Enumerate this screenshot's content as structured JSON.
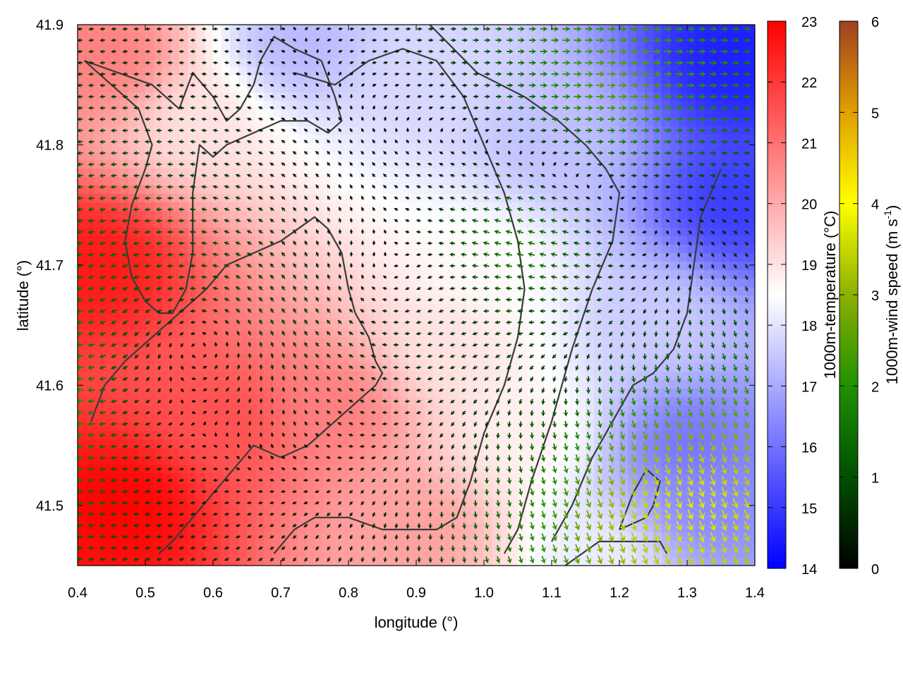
{
  "chart_data": {
    "type": "heatmap",
    "xlabel": "longitude (°)",
    "ylabel": "latitude (°)",
    "xlim": [
      0.4,
      1.4
    ],
    "ylim": [
      41.45,
      41.9
    ],
    "x_ticks": [
      "0.4",
      "0.5",
      "0.6",
      "0.7",
      "0.8",
      "0.9",
      "1.0",
      "1.1",
      "1.2",
      "1.3",
      "1.4"
    ],
    "y_ticks": [
      "41.5",
      "41.6",
      "41.7",
      "41.8",
      "41.9"
    ],
    "grid": false,
    "temperature": {
      "label": "1000m-temperature (°C)",
      "range": [
        14,
        23
      ],
      "ticks": [
        "14",
        "15",
        "16",
        "17",
        "18",
        "19",
        "20",
        "21",
        "22",
        "23"
      ],
      "colors": [
        "#0000ff",
        "#ffffff",
        "#ff0000"
      ],
      "hotspots": [
        {
          "lon": 0.47,
          "lat": 41.5,
          "t": 23.0
        },
        {
          "lon": 0.43,
          "lat": 41.7,
          "t": 22.6
        },
        {
          "lon": 0.45,
          "lat": 41.87,
          "t": 20.8
        },
        {
          "lon": 0.62,
          "lat": 41.57,
          "t": 21.6
        },
        {
          "lon": 0.78,
          "lat": 41.58,
          "t": 20.8
        },
        {
          "lon": 0.9,
          "lat": 41.48,
          "t": 20.2
        },
        {
          "lon": 0.58,
          "lat": 41.82,
          "t": 19.0
        },
        {
          "lon": 0.72,
          "lat": 41.88,
          "t": 17.2
        },
        {
          "lon": 0.93,
          "lat": 41.86,
          "t": 17.8
        },
        {
          "lon": 1.1,
          "lat": 41.8,
          "t": 17.4
        },
        {
          "lon": 1.37,
          "lat": 41.87,
          "t": 14.5
        },
        {
          "lon": 1.37,
          "lat": 41.75,
          "t": 15.0
        },
        {
          "lon": 1.0,
          "lat": 41.7,
          "t": 18.6
        },
        {
          "lon": 0.95,
          "lat": 41.63,
          "t": 19.0
        },
        {
          "lon": 1.25,
          "lat": 41.65,
          "t": 17.6
        },
        {
          "lon": 1.3,
          "lat": 41.55,
          "t": 16.0
        },
        {
          "lon": 1.32,
          "lat": 41.5,
          "t": 16.4
        },
        {
          "lon": 1.18,
          "lat": 41.46,
          "t": 18.2
        },
        {
          "lon": 1.06,
          "lat": 41.56,
          "t": 18.8
        }
      ]
    },
    "wind_speed": {
      "label": "1000m-wind speed (m s-1)",
      "label_main": "1000m-wind speed (m s",
      "label_sup": "-1",
      "label_tail": ")",
      "range": [
        0,
        6
      ],
      "ticks": [
        "0",
        "1",
        "2",
        "3",
        "4",
        "5",
        "6"
      ],
      "colors": [
        "#000000",
        "#005000",
        "#209000",
        "#8cb000",
        "#ffff00",
        "#e0a000",
        "#a04020"
      ],
      "vortices": [
        {
          "lon": 0.58,
          "lat": 41.64,
          "vx": 0.0,
          "vy": 0.0,
          "spin": 1.0
        },
        {
          "lon": 0.85,
          "lat": 41.68,
          "vx": 0.0,
          "vy": 0.0,
          "spin": -0.6
        },
        {
          "lon": 0.3,
          "lat": 41.6,
          "vx": -3.2,
          "vy": 0.2,
          "spin": 0
        },
        {
          "lon": 1.05,
          "lat": 41.72,
          "vx": -2.0,
          "vy": 0.6,
          "spin": 0
        },
        {
          "lon": 1.3,
          "lat": 41.5,
          "vx": 1.6,
          "vy": -3.6,
          "spin": 0
        },
        {
          "lon": 1.2,
          "lat": 41.85,
          "vx": 2.8,
          "vy": 0.0,
          "spin": 0
        }
      ]
    },
    "contours": [
      [
        [
          0.41,
          41.87
        ],
        [
          0.46,
          41.86
        ],
        [
          0.51,
          41.85
        ],
        [
          0.55,
          41.83
        ],
        [
          0.57,
          41.86
        ],
        [
          0.6,
          41.84
        ],
        [
          0.62,
          41.82
        ],
        [
          0.64,
          41.83
        ],
        [
          0.66,
          41.85
        ],
        [
          0.67,
          41.87
        ],
        [
          0.69,
          41.89
        ],
        [
          0.72,
          41.88
        ],
        [
          0.76,
          41.87
        ],
        [
          0.78,
          41.84
        ],
        [
          0.79,
          41.82
        ],
        [
          0.77,
          41.81
        ],
        [
          0.74,
          41.82
        ],
        [
          0.7,
          41.82
        ],
        [
          0.66,
          41.81
        ],
        [
          0.62,
          41.8
        ],
        [
          0.6,
          41.79
        ],
        [
          0.58,
          41.8
        ],
        [
          0.57,
          41.76
        ],
        [
          0.57,
          41.71
        ],
        [
          0.56,
          41.68
        ],
        [
          0.54,
          41.66
        ],
        [
          0.52,
          41.66
        ],
        [
          0.5,
          41.67
        ],
        [
          0.48,
          41.69
        ],
        [
          0.47,
          41.72
        ],
        [
          0.48,
          41.75
        ],
        [
          0.5,
          41.78
        ],
        [
          0.51,
          41.8
        ],
        [
          0.49,
          41.83
        ],
        [
          0.45,
          41.85
        ],
        [
          0.41,
          41.87
        ]
      ],
      [
        [
          0.42,
          41.57
        ],
        [
          0.44,
          41.6
        ],
        [
          0.47,
          41.62
        ],
        [
          0.51,
          41.64
        ],
        [
          0.55,
          41.66
        ],
        [
          0.59,
          41.68
        ],
        [
          0.62,
          41.7
        ],
        [
          0.66,
          41.71
        ],
        [
          0.7,
          41.72
        ],
        [
          0.75,
          41.74
        ],
        [
          0.77,
          41.73
        ],
        [
          0.79,
          41.71
        ],
        [
          0.8,
          41.68
        ],
        [
          0.81,
          41.66
        ],
        [
          0.83,
          41.64
        ],
        [
          0.84,
          41.62
        ],
        [
          0.85,
          41.61
        ],
        [
          0.84,
          41.6
        ],
        [
          0.82,
          41.59
        ],
        [
          0.8,
          41.58
        ],
        [
          0.78,
          41.57
        ],
        [
          0.76,
          41.56
        ],
        [
          0.74,
          41.55
        ],
        [
          0.7,
          41.54
        ],
        [
          0.66,
          41.55
        ],
        [
          0.63,
          41.53
        ],
        [
          0.6,
          41.51
        ],
        [
          0.57,
          41.49
        ],
        [
          0.54,
          41.47
        ],
        [
          0.52,
          41.46
        ]
      ],
      [
        [
          0.72,
          41.86
        ],
        [
          0.78,
          41.85
        ],
        [
          0.83,
          41.87
        ],
        [
          0.88,
          41.88
        ],
        [
          0.93,
          41.87
        ],
        [
          0.97,
          41.84
        ],
        [
          1.0,
          41.8
        ],
        [
          1.03,
          41.76
        ],
        [
          1.05,
          41.72
        ],
        [
          1.06,
          41.68
        ],
        [
          1.05,
          41.64
        ],
        [
          1.03,
          41.6
        ],
        [
          1.0,
          41.56
        ],
        [
          0.98,
          41.52
        ],
        [
          0.96,
          41.49
        ],
        [
          0.93,
          41.48
        ],
        [
          0.89,
          41.48
        ],
        [
          0.85,
          41.48
        ],
        [
          0.8,
          41.49
        ],
        [
          0.75,
          41.49
        ],
        [
          0.72,
          41.48
        ],
        [
          0.69,
          41.46
        ]
      ],
      [
        [
          0.92,
          41.9
        ],
        [
          0.99,
          41.86
        ],
        [
          1.06,
          41.84
        ],
        [
          1.11,
          41.82
        ],
        [
          1.15,
          41.8
        ],
        [
          1.18,
          41.78
        ],
        [
          1.2,
          41.76
        ],
        [
          1.19,
          41.72
        ],
        [
          1.16,
          41.68
        ],
        [
          1.13,
          41.63
        ],
        [
          1.1,
          41.57
        ],
        [
          1.07,
          41.52
        ],
        [
          1.05,
          41.48
        ],
        [
          1.03,
          41.46
        ]
      ],
      [
        [
          1.35,
          41.78
        ],
        [
          1.32,
          41.74
        ],
        [
          1.31,
          41.7
        ],
        [
          1.3,
          41.66
        ],
        [
          1.28,
          41.63
        ],
        [
          1.25,
          41.61
        ],
        [
          1.22,
          41.6
        ],
        [
          1.19,
          41.57
        ],
        [
          1.16,
          41.54
        ],
        [
          1.13,
          41.5
        ],
        [
          1.1,
          41.47
        ]
      ],
      [
        [
          1.2,
          41.48
        ],
        [
          1.24,
          41.49
        ],
        [
          1.25,
          41.5
        ],
        [
          1.26,
          41.52
        ],
        [
          1.24,
          41.53
        ],
        [
          1.22,
          41.51
        ],
        [
          1.2,
          41.48
        ]
      ],
      [
        [
          1.12,
          41.45
        ],
        [
          1.17,
          41.47
        ],
        [
          1.22,
          41.47
        ],
        [
          1.26,
          41.47
        ],
        [
          1.27,
          41.46
        ]
      ]
    ]
  }
}
